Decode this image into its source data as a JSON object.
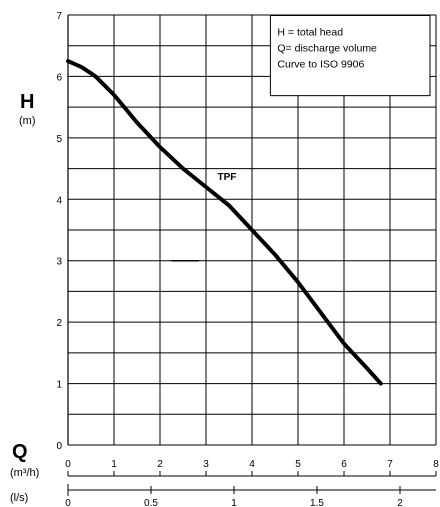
{
  "chart_data": {
    "type": "line",
    "axes": {
      "h_symbol": "H",
      "h_unit": "(m)",
      "q_symbol": "Q",
      "q_unit_m3h": "(m³/h)",
      "q_unit_ls": "(l/s)"
    },
    "ylim": [
      0,
      7
    ],
    "xlim": [
      0,
      8
    ],
    "y_ticks": [
      0,
      1,
      2,
      3,
      4,
      5,
      6,
      7
    ],
    "x_ticks_m3h": [
      0,
      1,
      2,
      3,
      4,
      5,
      6,
      7,
      8
    ],
    "x_ticks_ls": [
      "0",
      "0.5",
      "1",
      "1.5",
      "2"
    ],
    "grid": true,
    "legend": {
      "placement": "top-right",
      "lines": [
        "H = total head",
        "Q= discharge volume",
        "Curve to ISO 9906"
      ]
    },
    "series": [
      {
        "name": "TPF",
        "x": [
          0.0,
          0.3,
          0.6,
          1.0,
          1.5,
          2.0,
          2.5,
          3.0,
          3.5,
          4.0,
          4.5,
          5.0,
          5.5,
          6.0,
          6.5,
          6.8
        ],
        "y": [
          6.25,
          6.15,
          6.0,
          5.7,
          5.25,
          4.85,
          4.5,
          4.2,
          3.9,
          3.5,
          3.1,
          2.65,
          2.15,
          1.65,
          1.25,
          1.0
        ]
      }
    ],
    "series_label_at": {
      "x": 3.25,
      "y": 4.2
    },
    "marker_segment": {
      "x": [
        2.25,
        2.85
      ],
      "y": 3.0
    }
  }
}
